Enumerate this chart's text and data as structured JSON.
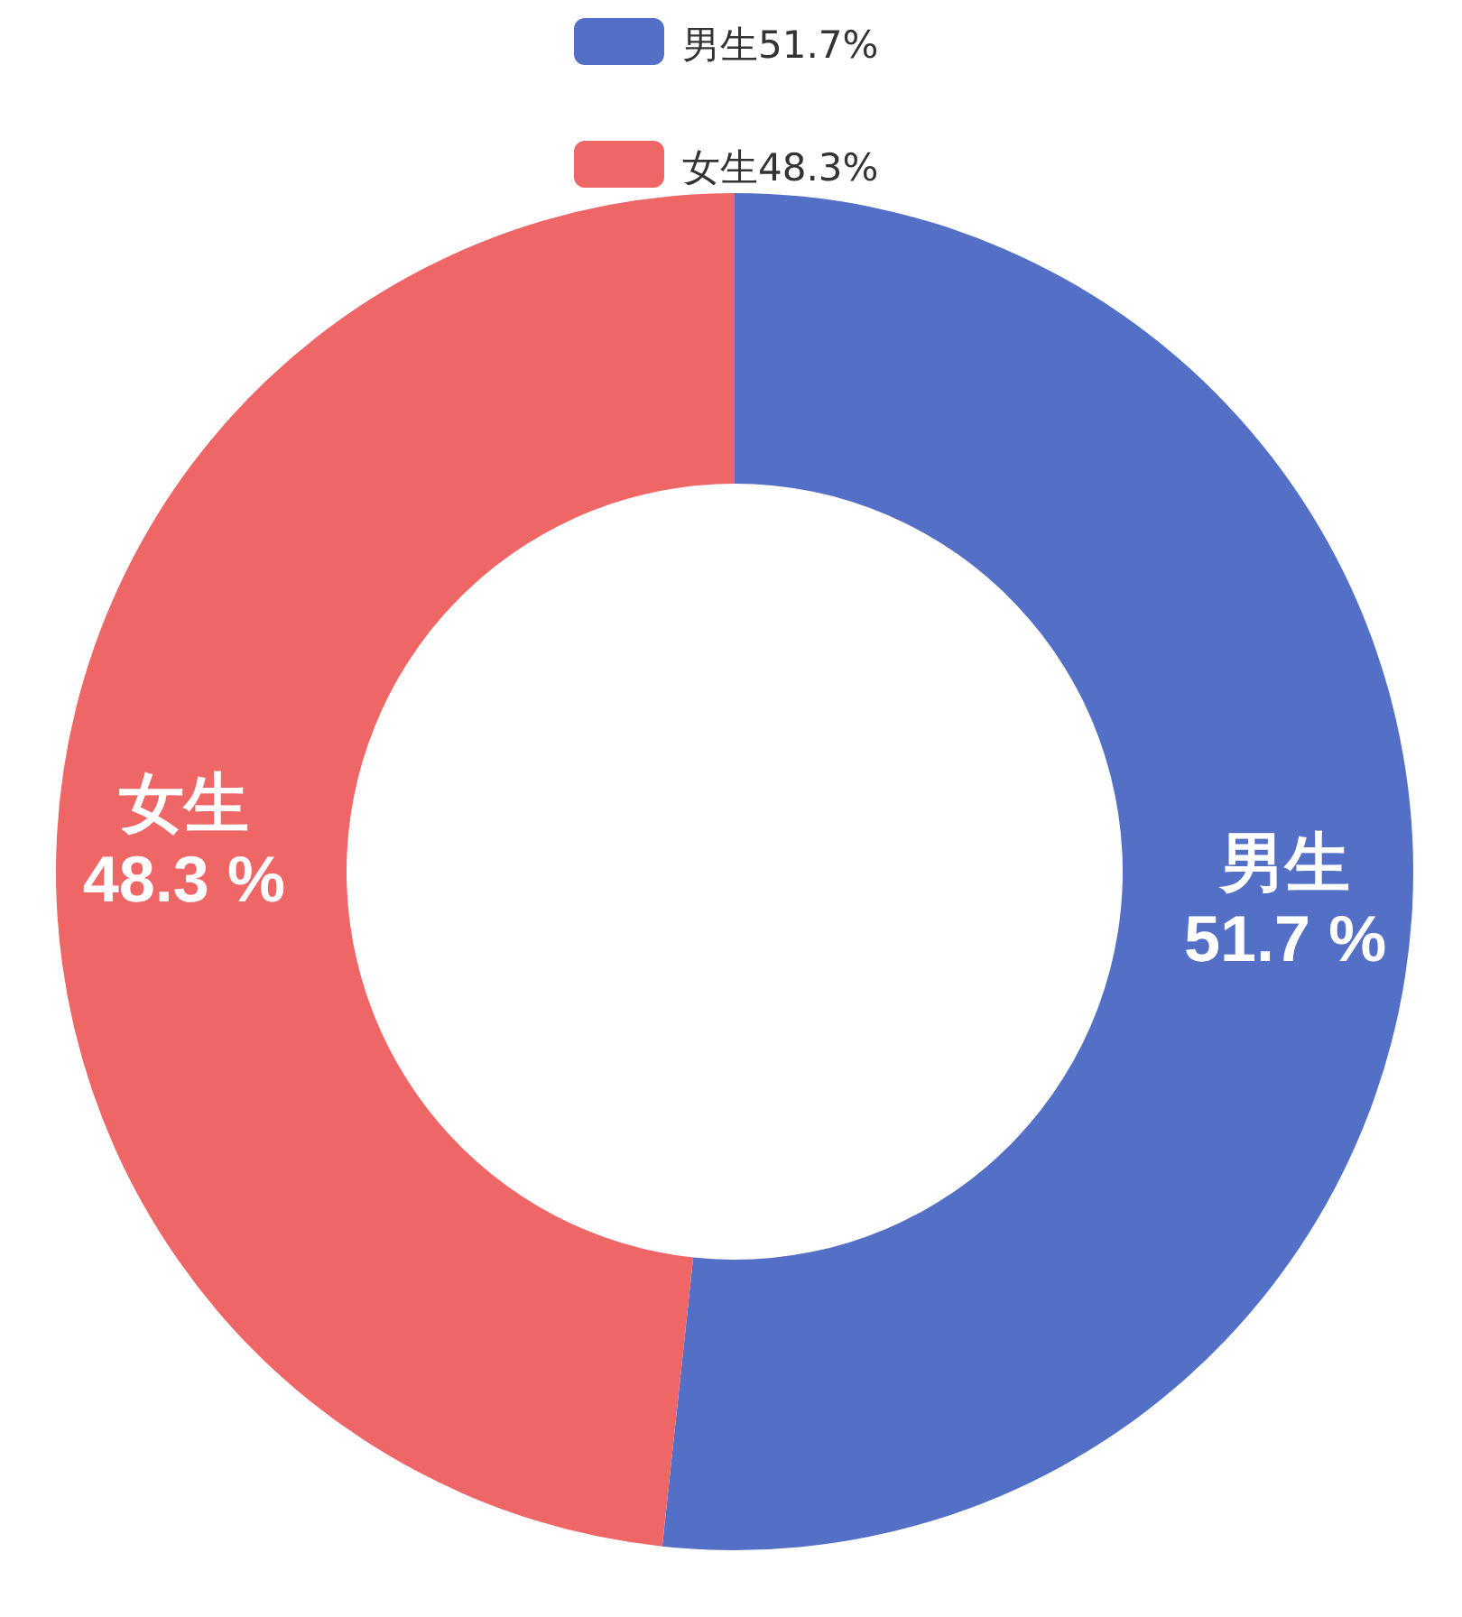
{
  "chart_data": {
    "type": "donut",
    "categories": [
      "男生51.7%",
      "女生48.3%"
    ],
    "values": [
      51.7,
      48.3
    ],
    "colors": [
      "#5470c6",
      "#ee6666"
    ],
    "value_labels": [
      "男生\n51.7 %",
      "女生\n48.3 %"
    ],
    "legend": "top"
  }
}
